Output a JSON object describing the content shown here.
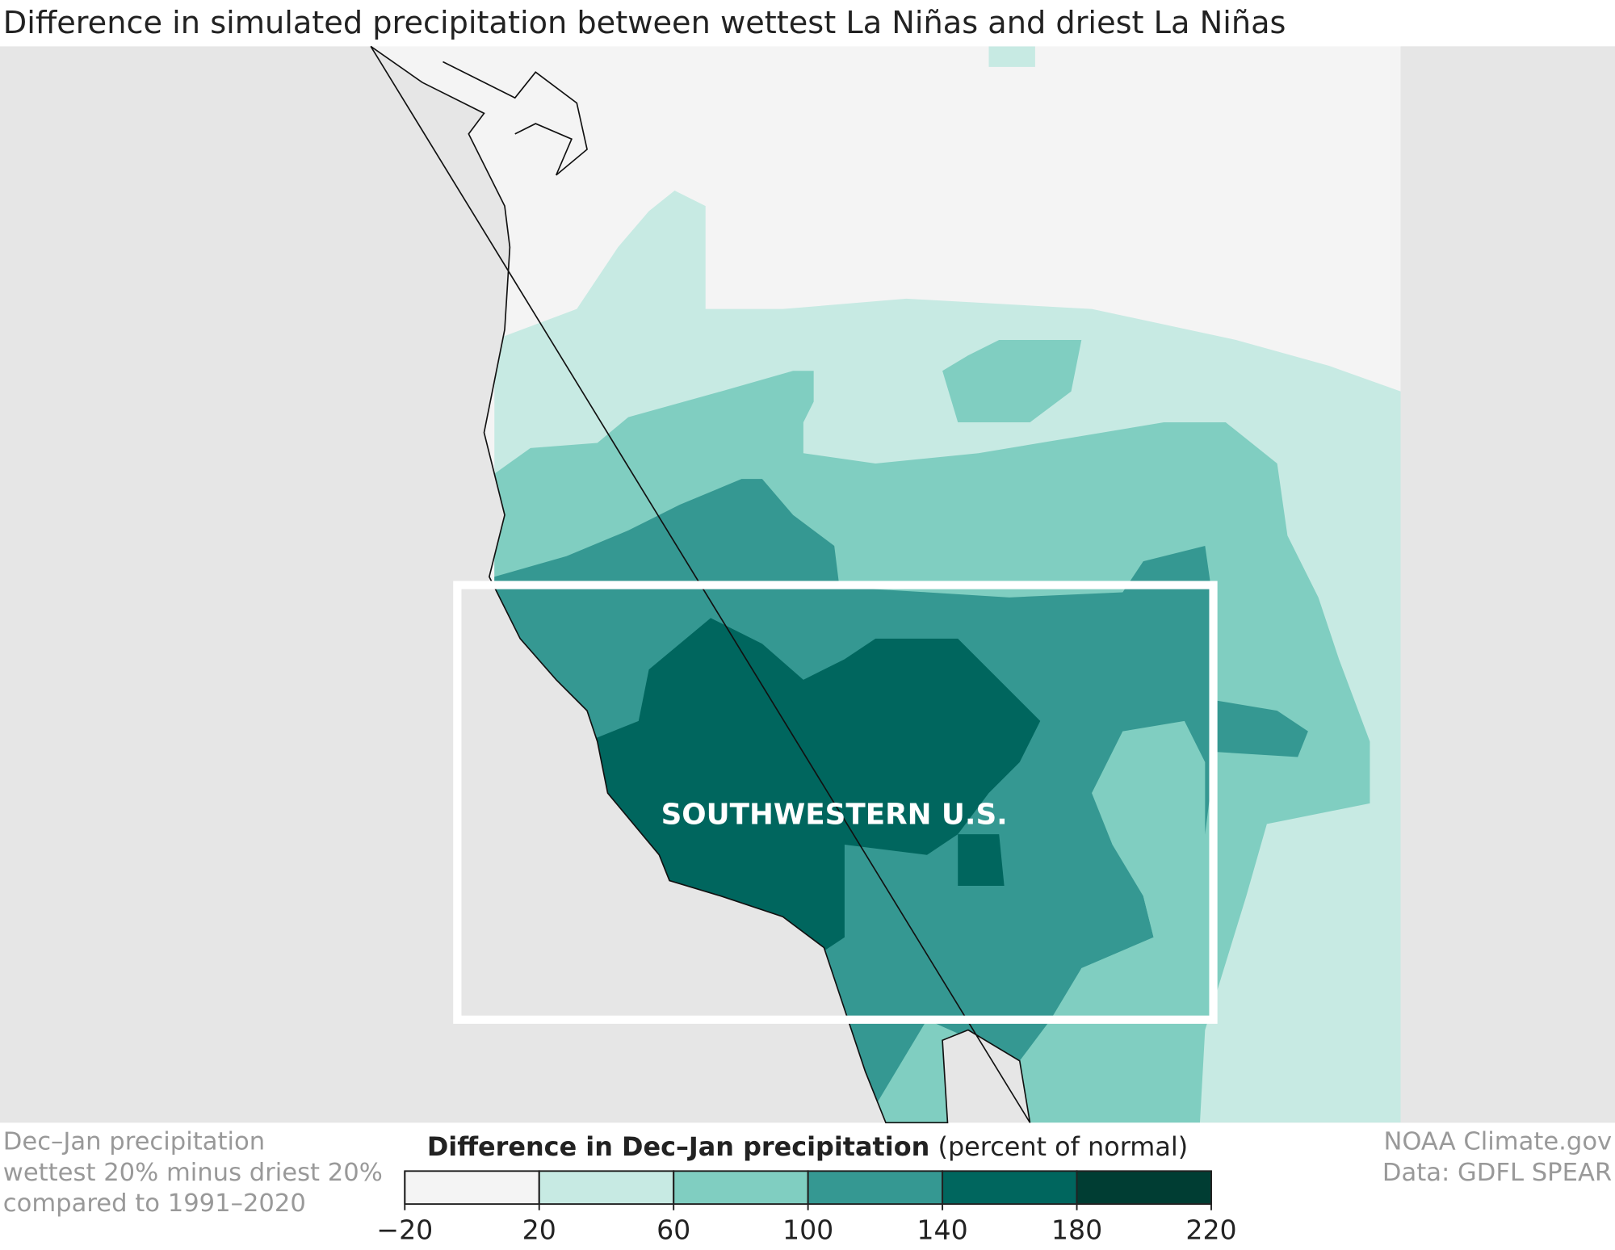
{
  "title": "Difference in simulated precipitation between wettest La Niñas and driest La Niñas",
  "map": {
    "region_label": "SOUTHWESTERN U.S."
  },
  "legend": {
    "title_bold": "Difference in Dec–Jan precipitation",
    "title_rest": "(percent of normal)",
    "ticks": [
      {
        "value": -20,
        "label": "−20"
      },
      20,
      60,
      100,
      140,
      180,
      220
    ],
    "colors": [
      "#f4f4f4",
      "#c7eae3",
      "#80cec1",
      "#359892",
      "#00665e",
      "#003d33"
    ]
  },
  "notes": [
    "Dec–Jan precipitation",
    "wettest 20% minus driest 20%",
    "compared to 1991–2020"
  ],
  "credits": [
    "NOAA Climate.gov",
    "Data: GDFL SPEAR"
  ]
}
